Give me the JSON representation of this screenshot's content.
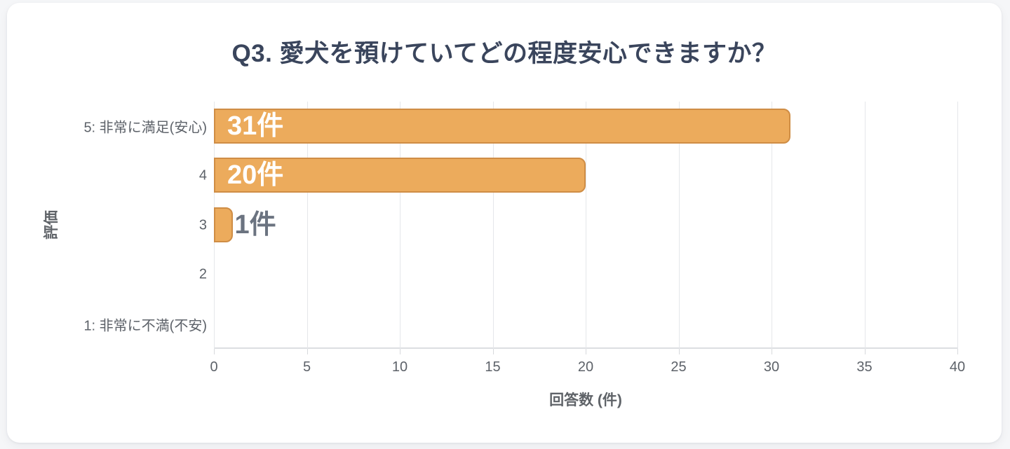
{
  "page": {
    "background_color": "#f5f6f8",
    "card_background_color": "#ffffff"
  },
  "chart_data": {
    "type": "bar",
    "orientation": "horizontal",
    "title": "Q3. 愛犬を預けていてどの程度安心できますか？",
    "categories": [
      "5: 非常に満足(安心)",
      "4",
      "3",
      "2",
      "1: 非常に不満(不安)"
    ],
    "values": [
      31,
      20,
      1,
      0,
      0
    ],
    "value_labels": [
      "31件",
      "20件",
      "1件",
      "",
      ""
    ],
    "label_positions": [
      "inside",
      "inside",
      "outside",
      "none",
      "none"
    ],
    "xlabel": "回答数 (件)",
    "ylabel": "評価",
    "xlim": [
      0,
      40
    ],
    "x_ticks": [
      0,
      5,
      10,
      15,
      20,
      25,
      30,
      35,
      40
    ],
    "grid": "vertical-only",
    "legend": "none",
    "colors": {
      "bar_fill": "#ecab5c",
      "bar_border": "#cf8d45",
      "gridline": "#e5e7ea",
      "axis_spine": "#dcdee1",
      "title_text": "#3a455c",
      "axis_text": "#5d6269",
      "axis_title_text": "#5f6368",
      "value_label_inside": "#ffffff",
      "value_label_outside": "#6b7380"
    }
  }
}
